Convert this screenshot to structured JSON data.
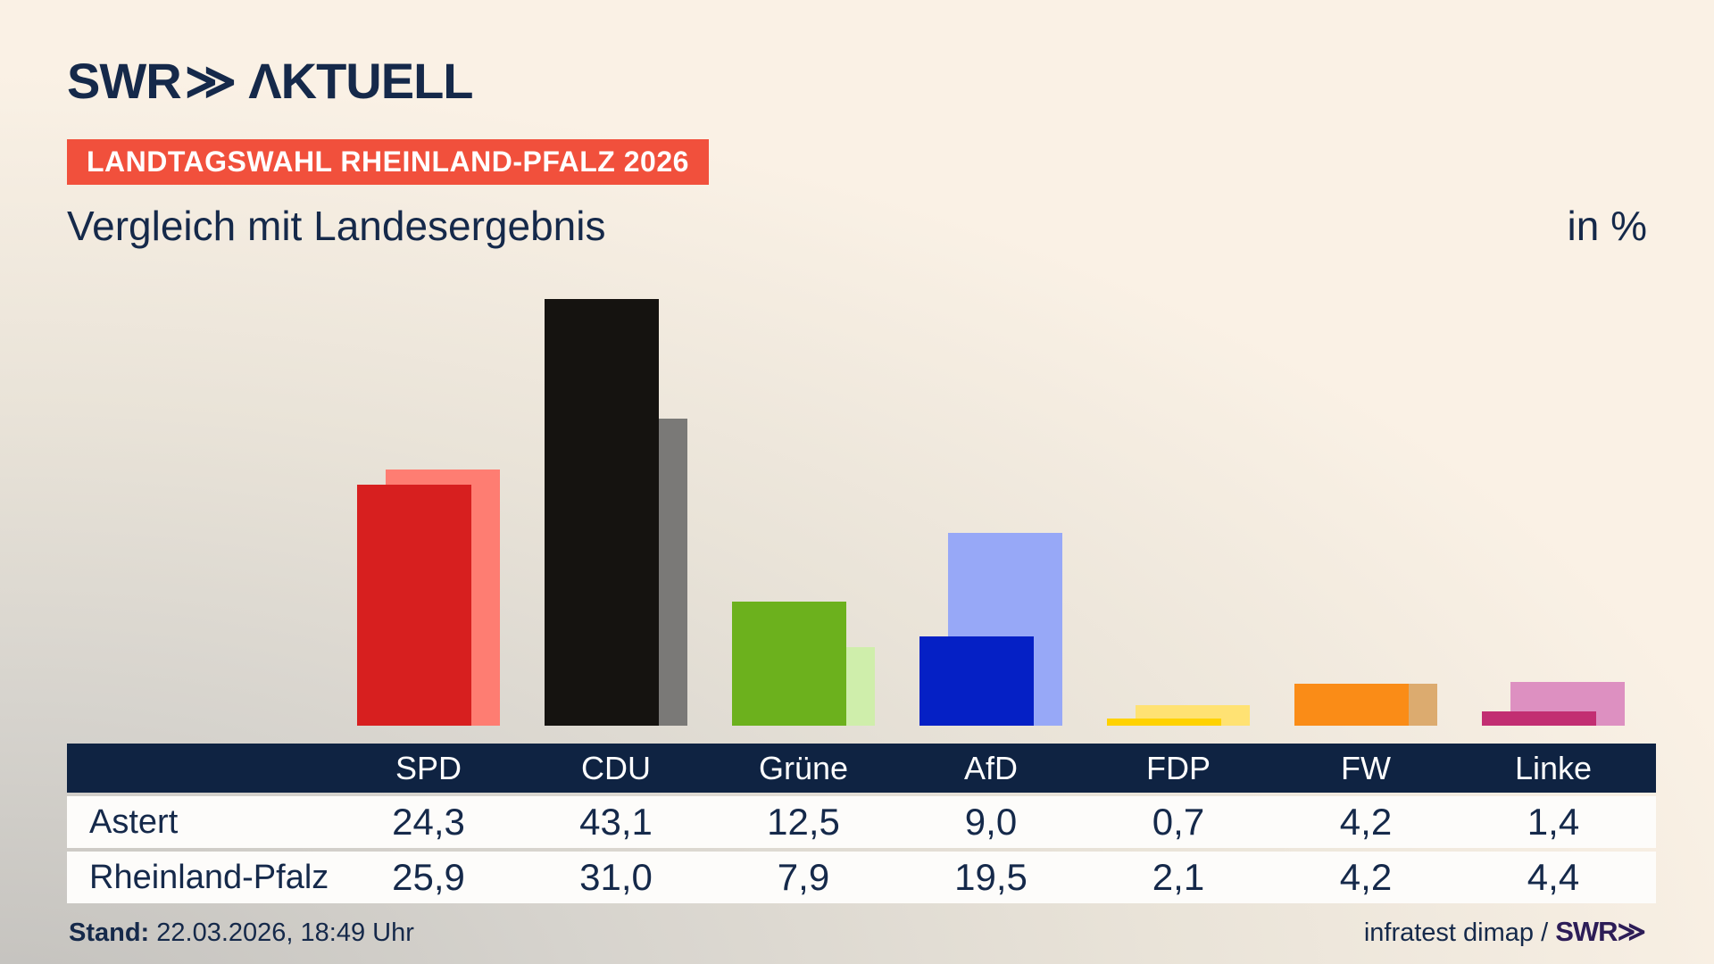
{
  "brand": {
    "swr": "SWR",
    "chevrons": "≫",
    "aktuell": "ΛKTUELL"
  },
  "badge": {
    "label": "LANDTAGSWAHL RHEINLAND-PFALZ 2026"
  },
  "title": "Vergleich mit Landesergebnis",
  "unit_label": "in %",
  "footer": {
    "stand_label": "Stand:",
    "stand_value": "22.03.2026, 18:49 Uhr",
    "source": "infratest dimap /",
    "source_brand": "SWR≫"
  },
  "colors": {
    "navy_text": "#15294a",
    "badge_bg": "#f1503c",
    "table_header_bg": "#0f2342",
    "row_bg": "#fdfcfa",
    "source_brand": "#2d1d57",
    "bar_front": [
      "#d71f1f",
      "#151310",
      "#6cb11d",
      "#0520c5",
      "#ffd200",
      "#fa8c17",
      "#c22e72"
    ],
    "bar_back": [
      "#fe7d72",
      "#7a7977",
      "#cfeeab",
      "#97a8f7",
      "#ffe273",
      "#dcab6f",
      "#dd90c1"
    ]
  },
  "chart_data": {
    "type": "bar",
    "title": "Vergleich mit Landesergebnis",
    "unit": "in %",
    "categories": [
      "SPD",
      "CDU",
      "Grüne",
      "AfD",
      "FDP",
      "FW",
      "Linke"
    ],
    "series": [
      {
        "name": "Astert",
        "values": [
          24.3,
          43.1,
          12.5,
          9.0,
          0.7,
          4.2,
          1.4
        ]
      },
      {
        "name": "Rheinland-Pfalz",
        "values": [
          25.9,
          31.0,
          7.9,
          19.5,
          2.1,
          4.2,
          4.4
        ]
      }
    ],
    "ylim": [
      0,
      45
    ],
    "legend": "none",
    "grid": false
  },
  "table": {
    "row_labels": [
      "Astert",
      "Rheinland-Pfalz"
    ],
    "display_values": [
      [
        "24,3",
        "43,1",
        "12,5",
        "9,0",
        "0,7",
        "4,2",
        "1,4"
      ],
      [
        "25,9",
        "31,0",
        "7,9",
        "19,5",
        "2,1",
        "4,2",
        "4,4"
      ]
    ]
  }
}
